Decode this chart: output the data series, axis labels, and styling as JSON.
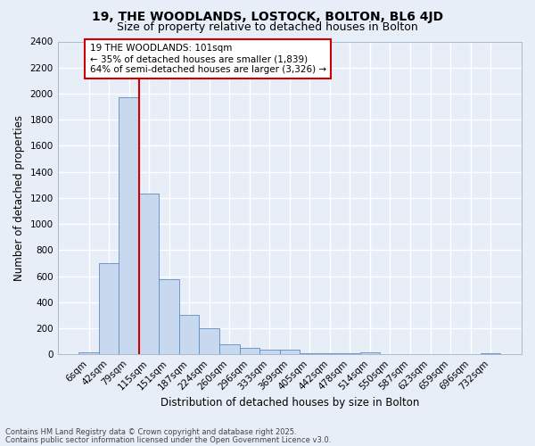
{
  "title": "19, THE WOODLANDS, LOSTOCK, BOLTON, BL6 4JD",
  "subtitle": "Size of property relative to detached houses in Bolton",
  "xlabel": "Distribution of detached houses by size in Bolton",
  "ylabel": "Number of detached properties",
  "categories": [
    "6sqm",
    "42sqm",
    "79sqm",
    "115sqm",
    "151sqm",
    "187sqm",
    "224sqm",
    "260sqm",
    "296sqm",
    "333sqm",
    "369sqm",
    "405sqm",
    "442sqm",
    "478sqm",
    "514sqm",
    "550sqm",
    "587sqm",
    "623sqm",
    "659sqm",
    "696sqm",
    "732sqm"
  ],
  "values": [
    15,
    700,
    1970,
    1230,
    575,
    305,
    200,
    80,
    50,
    35,
    35,
    10,
    10,
    5,
    15,
    0,
    0,
    0,
    0,
    0,
    5
  ],
  "bar_color": "#c8d8ee",
  "bar_edge_color": "#5b8bc5",
  "vline_color": "#cc0000",
  "vline_x_index": 2.5,
  "annotation_text": "19 THE WOODLANDS: 101sqm\n← 35% of detached houses are smaller (1,839)\n64% of semi-detached houses are larger (3,326) →",
  "annotation_box_edge_color": "#cc0000",
  "annotation_box_face_color": "white",
  "ylim": [
    0,
    2400
  ],
  "yticks": [
    0,
    200,
    400,
    600,
    800,
    1000,
    1200,
    1400,
    1600,
    1800,
    2000,
    2200,
    2400
  ],
  "bg_color": "#e8eef8",
  "grid_color": "white",
  "footer1": "Contains HM Land Registry data © Crown copyright and database right 2025.",
  "footer2": "Contains public sector information licensed under the Open Government Licence v3.0.",
  "title_fontsize": 10,
  "subtitle_fontsize": 9,
  "axis_label_fontsize": 8.5,
  "tick_fontsize": 7.5,
  "annotation_fontsize": 7.5,
  "footer_fontsize": 6.0
}
